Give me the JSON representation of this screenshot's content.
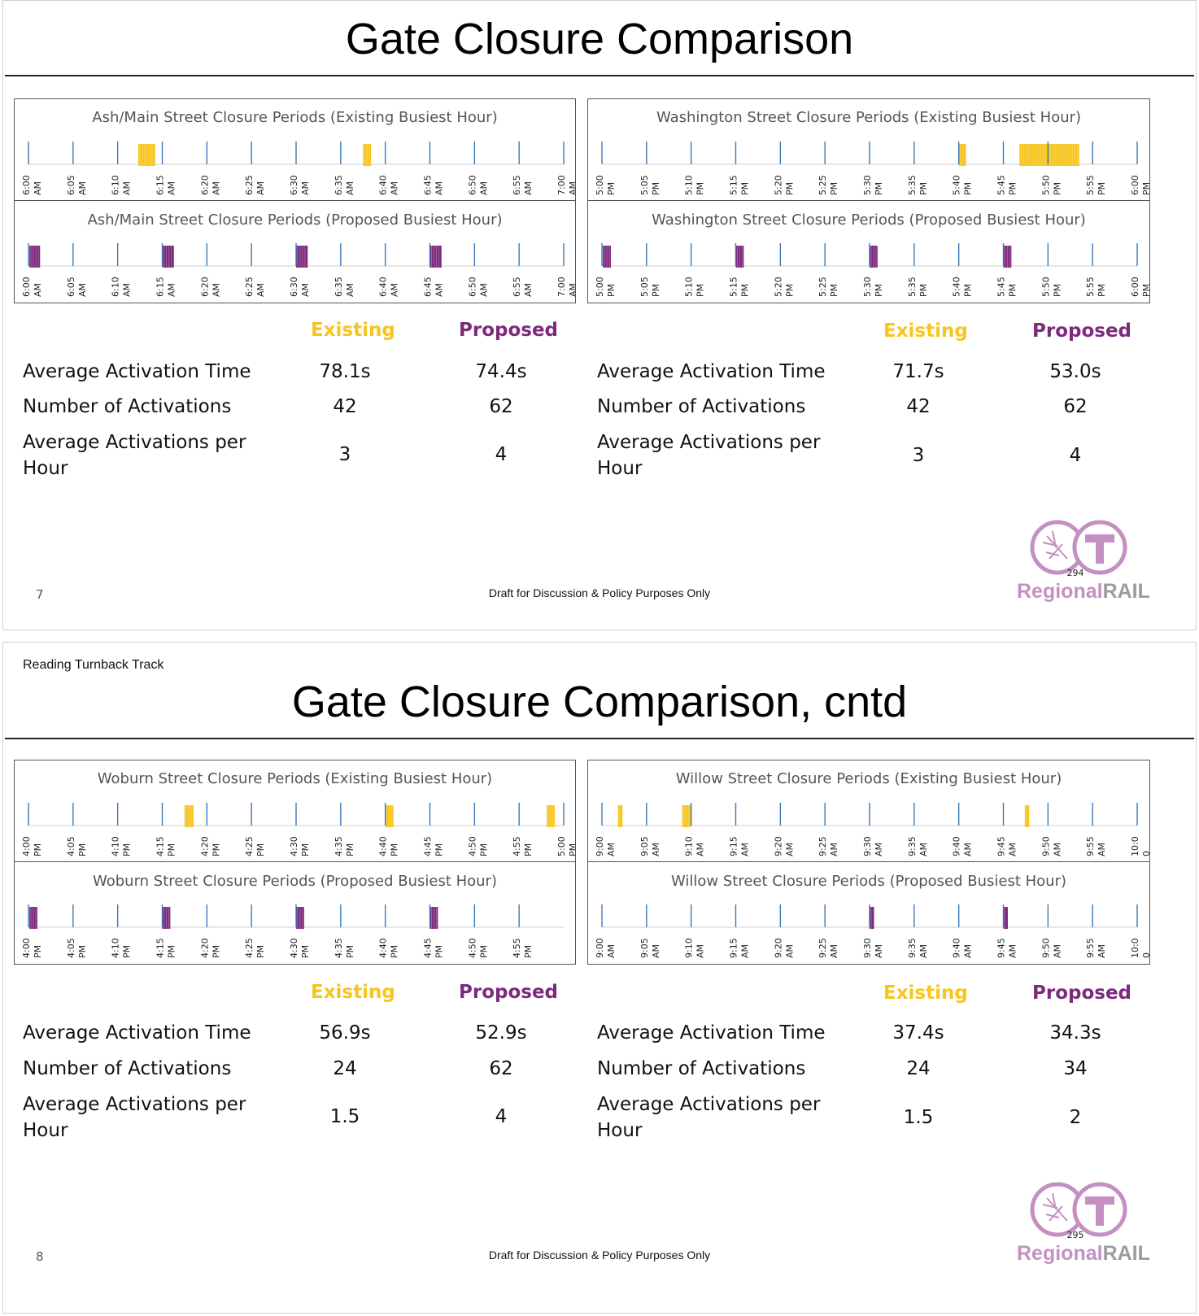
{
  "colors": {
    "existing": "#f7c51e",
    "proposed": "#7e2a7c",
    "tick": "#3b79b6",
    "logo": "#c490c2"
  },
  "slide1": {
    "page_number": "7",
    "title": "Gate Closure Comparison",
    "footer": "Draft for Discussion & Policy Purposes Only",
    "logo": {
      "page": "294",
      "word1": "Regional",
      "word2": "RAIL",
      "icon": "train-logo-icon"
    },
    "left": {
      "existing_title": "Ash/Main Street Closure Periods (Existing Busiest Hour)",
      "proposed_title": "Ash/Main Street Closure Periods (Proposed Busiest Hour)",
      "stats": {
        "existing_label": "Existing",
        "proposed_label": "Proposed",
        "rows": [
          {
            "label": "Average Activation Time",
            "existing": "78.1s",
            "proposed": "74.4s"
          },
          {
            "label": "Number of Activations",
            "existing": "42",
            "proposed": "62"
          },
          {
            "label": "Average Activations per Hour",
            "existing": "3",
            "proposed": "4"
          }
        ]
      }
    },
    "right": {
      "existing_title": "Washington Street Closure Periods (Existing Busiest Hour)",
      "proposed_title": "Washington Street Closure Periods (Proposed Busiest Hour)",
      "stats": {
        "existing_label": "Existing",
        "proposed_label": "Proposed",
        "rows": [
          {
            "label": "Average Activation Time",
            "existing": "71.7s",
            "proposed": "53.0s"
          },
          {
            "label": "Number of Activations",
            "existing": "42",
            "proposed": "62"
          },
          {
            "label": "Average Activations per Hour",
            "existing": "3",
            "proposed": "4"
          }
        ]
      }
    }
  },
  "slide2": {
    "page_number": "8",
    "header": "Reading Turnback Track",
    "title": "Gate Closure Comparison, cntd",
    "footer": "Draft for Discussion & Policy Purposes Only",
    "logo": {
      "page": "295",
      "word1": "Regional",
      "word2": "RAIL",
      "icon": "train-logo-icon"
    },
    "left": {
      "existing_title": "Woburn Street Closure Periods (Existing Busiest Hour)",
      "proposed_title": "Woburn Street Closure Periods (Proposed Busiest Hour)",
      "stats": {
        "existing_label": "Existing",
        "proposed_label": "Proposed",
        "rows": [
          {
            "label": "Average Activation Time",
            "existing": "56.9s",
            "proposed": "52.9s"
          },
          {
            "label": "Number of Activations",
            "existing": "24",
            "proposed": "62"
          },
          {
            "label": "Average Activations per Hour",
            "existing": "1.5",
            "proposed": "4"
          }
        ]
      }
    },
    "right": {
      "existing_title": "Willow Street Closure Periods (Existing Busiest Hour)",
      "proposed_title": "Willow Street Closure Periods (Proposed Busiest Hour)",
      "stats": {
        "existing_label": "Existing",
        "proposed_label": "Proposed",
        "rows": [
          {
            "label": "Average Activation Time",
            "existing": "37.4s",
            "proposed": "34.3s"
          },
          {
            "label": "Number of Activations",
            "existing": "24",
            "proposed": "34"
          },
          {
            "label": "Average Activations per Hour",
            "existing": "1.5",
            "proposed": "2"
          }
        ]
      }
    }
  },
  "chart_data": [
    {
      "type": "timeline",
      "title": "Ash/Main Street Closure Periods (Existing Busiest Hour)",
      "series": "existing",
      "ticks": [
        [
          "6:00",
          "AM"
        ],
        [
          "6:05",
          "AM"
        ],
        [
          "6:10",
          "AM"
        ],
        [
          "6:15",
          "AM"
        ],
        [
          "6:20",
          "AM"
        ],
        [
          "6:25",
          "AM"
        ],
        [
          "6:30",
          "AM"
        ],
        [
          "6:35",
          "AM"
        ],
        [
          "6:40",
          "AM"
        ],
        [
          "6:45",
          "AM"
        ],
        [
          "6:50",
          "AM"
        ],
        [
          "6:55",
          "AM"
        ],
        [
          "7:00",
          "AM"
        ]
      ],
      "closures_min": [
        [
          12.3,
          14.2
        ],
        [
          37.5,
          38.4
        ]
      ]
    },
    {
      "type": "timeline",
      "title": "Ash/Main Street Closure Periods (Proposed Busiest Hour)",
      "series": "proposed",
      "ticks": [
        [
          "6:00",
          "AM"
        ],
        [
          "6:05",
          "AM"
        ],
        [
          "6:10",
          "AM"
        ],
        [
          "6:15",
          "AM"
        ],
        [
          "6:20",
          "AM"
        ],
        [
          "6:25",
          "AM"
        ],
        [
          "6:30",
          "AM"
        ],
        [
          "6:35",
          "AM"
        ],
        [
          "6:40",
          "AM"
        ],
        [
          "6:45",
          "AM"
        ],
        [
          "6:50",
          "AM"
        ],
        [
          "6:55",
          "AM"
        ],
        [
          "7:00",
          "AM"
        ]
      ],
      "closures_min": [
        [
          0.1,
          1.3
        ],
        [
          15.0,
          16.3
        ],
        [
          30.0,
          31.3
        ],
        [
          45.0,
          46.3
        ]
      ]
    },
    {
      "type": "timeline",
      "title": "Washington Street Closure Periods (Existing Busiest Hour)",
      "series": "existing",
      "ticks": [
        [
          "5:00",
          "PM"
        ],
        [
          "5:05",
          "PM"
        ],
        [
          "5:10",
          "PM"
        ],
        [
          "5:15",
          "PM"
        ],
        [
          "5:20",
          "PM"
        ],
        [
          "5:25",
          "PM"
        ],
        [
          "5:30",
          "PM"
        ],
        [
          "5:35",
          "PM"
        ],
        [
          "5:40",
          "PM"
        ],
        [
          "5:45",
          "PM"
        ],
        [
          "5:50",
          "PM"
        ],
        [
          "5:55",
          "PM"
        ],
        [
          "6:00",
          "PM"
        ]
      ],
      "closures_min": [
        [
          40.0,
          40.8
        ],
        [
          46.8,
          53.5
        ]
      ]
    },
    {
      "type": "timeline",
      "title": "Washington Street Closure Periods (Proposed Busiest Hour)",
      "series": "proposed",
      "ticks": [
        [
          "5:00",
          "PM"
        ],
        [
          "5:05",
          "PM"
        ],
        [
          "5:10",
          "PM"
        ],
        [
          "5:15",
          "PM"
        ],
        [
          "5:20",
          "PM"
        ],
        [
          "5:25",
          "PM"
        ],
        [
          "5:30",
          "PM"
        ],
        [
          "5:35",
          "PM"
        ],
        [
          "5:40",
          "PM"
        ],
        [
          "5:45",
          "PM"
        ],
        [
          "5:50",
          "PM"
        ],
        [
          "5:55",
          "PM"
        ],
        [
          "6:00",
          "PM"
        ]
      ],
      "closures_min": [
        [
          0.1,
          1.0
        ],
        [
          15.0,
          15.9
        ],
        [
          30.0,
          30.9
        ],
        [
          45.0,
          45.9
        ]
      ]
    },
    {
      "type": "timeline",
      "title": "Woburn Street Closure Periods (Existing Busiest Hour)",
      "series": "existing",
      "ticks": [
        [
          "4:00",
          "PM"
        ],
        [
          "4:05",
          "PM"
        ],
        [
          "4:10",
          "PM"
        ],
        [
          "4:15",
          "PM"
        ],
        [
          "4:20",
          "PM"
        ],
        [
          "4:25",
          "PM"
        ],
        [
          "4:30",
          "PM"
        ],
        [
          "4:35",
          "PM"
        ],
        [
          "4:40",
          "PM"
        ],
        [
          "4:45",
          "PM"
        ],
        [
          "4:50",
          "PM"
        ],
        [
          "4:55",
          "PM"
        ],
        [
          "5:00",
          "PM"
        ]
      ],
      "closures_min": [
        [
          17.5,
          18.5
        ],
        [
          40.0,
          40.9
        ],
        [
          58.1,
          59.0
        ]
      ]
    },
    {
      "type": "timeline",
      "title": "Woburn Street Closure Periods (Proposed Busiest Hour)",
      "series": "proposed",
      "ticks": [
        [
          "4:00",
          "PM"
        ],
        [
          "4:05",
          "PM"
        ],
        [
          "4:10",
          "PM"
        ],
        [
          "4:15",
          "PM"
        ],
        [
          "4:20",
          "PM"
        ],
        [
          "4:25",
          "PM"
        ],
        [
          "4:30",
          "PM"
        ],
        [
          "4:35",
          "PM"
        ],
        [
          "4:40",
          "PM"
        ],
        [
          "4:45",
          "PM"
        ],
        [
          "4:50",
          "PM"
        ],
        [
          "4:55",
          "PM"
        ]
      ],
      "closures_min": [
        [
          0.1,
          1.0
        ],
        [
          15.0,
          15.9
        ],
        [
          30.0,
          30.9
        ],
        [
          45.0,
          45.9
        ]
      ]
    },
    {
      "type": "timeline",
      "title": "Willow Street Closure Periods (Existing Busiest Hour)",
      "series": "existing",
      "ticks": [
        [
          "9:00",
          "AM"
        ],
        [
          "9:05",
          "AM"
        ],
        [
          "9:10",
          "AM"
        ],
        [
          "9:15",
          "AM"
        ],
        [
          "9:20",
          "AM"
        ],
        [
          "9:25",
          "AM"
        ],
        [
          "9:30",
          "AM"
        ],
        [
          "9:35",
          "AM"
        ],
        [
          "9:40",
          "AM"
        ],
        [
          "9:45",
          "AM"
        ],
        [
          "9:50",
          "AM"
        ],
        [
          "9:55",
          "AM"
        ],
        [
          "10:0",
          "0"
        ]
      ],
      "closures_min": [
        [
          1.8,
          2.3
        ],
        [
          9.0,
          10.0
        ],
        [
          47.4,
          47.9
        ]
      ]
    },
    {
      "type": "timeline",
      "title": "Willow Street Closure Periods (Proposed Busiest Hour)",
      "series": "proposed",
      "ticks": [
        [
          "9:00",
          "AM"
        ],
        [
          "9:05",
          "AM"
        ],
        [
          "9:10",
          "AM"
        ],
        [
          "9:15",
          "AM"
        ],
        [
          "9:20",
          "AM"
        ],
        [
          "9:25",
          "AM"
        ],
        [
          "9:30",
          "AM"
        ],
        [
          "9:35",
          "AM"
        ],
        [
          "9:40",
          "AM"
        ],
        [
          "9:45",
          "AM"
        ],
        [
          "9:50",
          "AM"
        ],
        [
          "9:55",
          "AM"
        ],
        [
          "10:0",
          "0"
        ]
      ],
      "closures_min": [
        [
          30.0,
          30.5
        ],
        [
          45.0,
          45.5
        ]
      ]
    }
  ]
}
